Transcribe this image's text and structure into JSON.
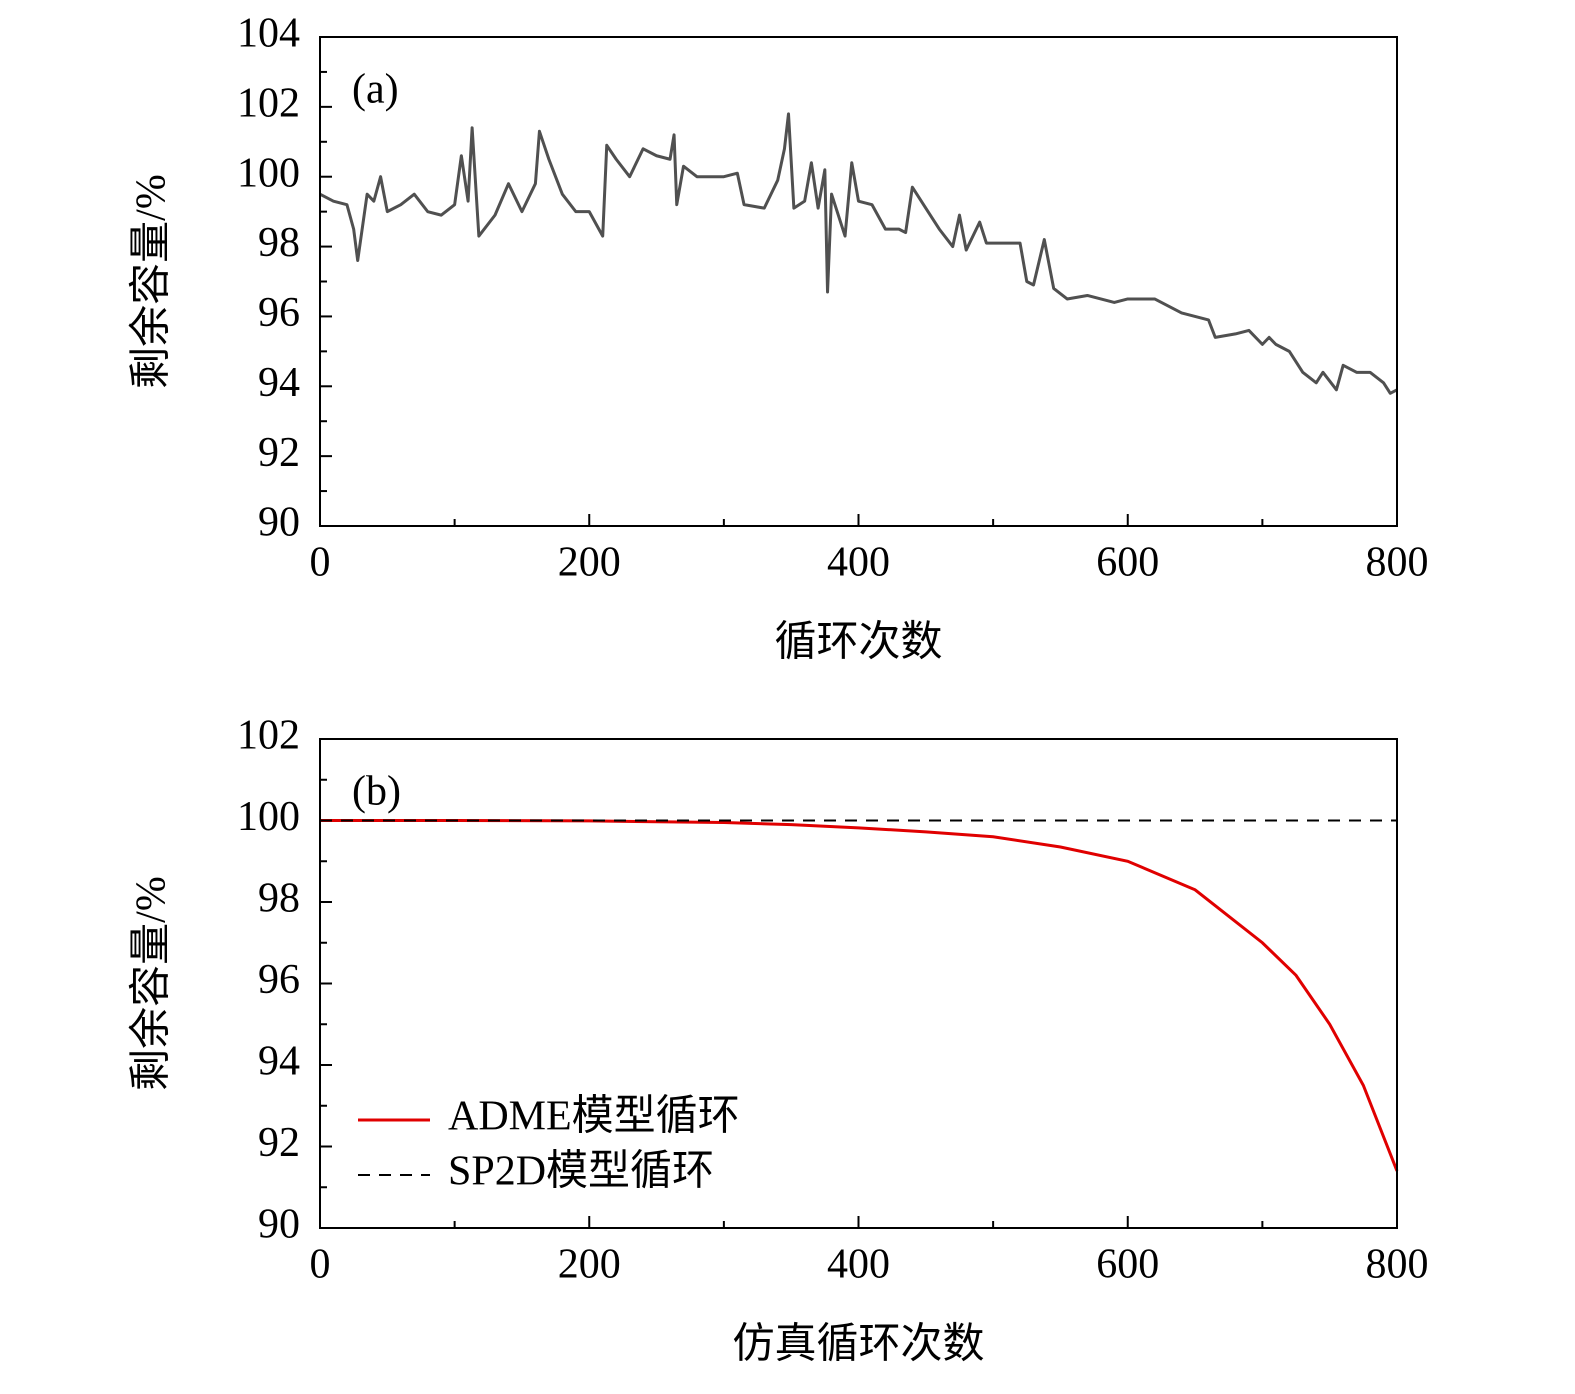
{
  "chart_data": [
    {
      "type": "line",
      "annotation": "(a)",
      "xlabel": "循环次数",
      "ylabel": "剩余容量/%",
      "x": [
        0,
        10,
        20,
        25,
        28,
        35,
        40,
        45,
        50,
        60,
        70,
        80,
        90,
        100,
        105,
        110,
        113,
        118,
        130,
        140,
        150,
        160,
        163,
        170,
        180,
        190,
        200,
        210,
        213,
        220,
        230,
        240,
        250,
        260,
        263,
        265,
        270,
        280,
        290,
        300,
        310,
        315,
        330,
        340,
        345,
        348,
        352,
        360,
        365,
        370,
        375,
        377,
        380,
        390,
        395,
        400,
        410,
        420,
        430,
        435,
        440,
        450,
        460,
        470,
        475,
        480,
        490,
        495,
        500,
        520,
        525,
        530,
        538,
        545,
        555,
        570,
        590,
        600,
        620,
        640,
        660,
        665,
        680,
        690,
        700,
        705,
        710,
        720,
        730,
        740,
        745,
        755,
        760,
        770,
        780,
        790,
        795,
        800
      ],
      "values": [
        99.5,
        99.3,
        99.2,
        98.5,
        97.6,
        99.5,
        99.3,
        100.0,
        99.0,
        99.2,
        99.5,
        99.0,
        98.9,
        99.2,
        100.6,
        99.3,
        101.4,
        98.3,
        98.9,
        99.8,
        99.0,
        99.8,
        101.3,
        100.5,
        99.5,
        99.0,
        99.0,
        98.3,
        100.9,
        100.5,
        100.0,
        100.8,
        100.6,
        100.5,
        101.2,
        99.2,
        100.3,
        100.0,
        100.0,
        100.0,
        100.1,
        99.2,
        99.1,
        99.9,
        100.8,
        101.8,
        99.1,
        99.3,
        100.4,
        99.1,
        100.2,
        96.7,
        99.5,
        98.3,
        100.4,
        99.3,
        99.2,
        98.5,
        98.5,
        98.4,
        99.7,
        99.1,
        98.5,
        98.0,
        98.9,
        97.9,
        98.7,
        98.1,
        98.1,
        98.1,
        97.0,
        96.9,
        98.2,
        96.8,
        96.5,
        96.6,
        96.4,
        96.5,
        96.5,
        96.1,
        95.9,
        95.4,
        95.5,
        95.6,
        95.2,
        95.4,
        95.2,
        95.0,
        94.4,
        94.1,
        94.4,
        93.9,
        94.6,
        94.4,
        94.4,
        94.1,
        93.8,
        93.9
      ],
      "color": "#505050",
      "xlim": [
        0,
        800
      ],
      "xticks": [
        0,
        200,
        400,
        600,
        800
      ],
      "xminor": [
        100,
        300,
        500,
        700
      ],
      "ylim": [
        90,
        104
      ],
      "yticks": [
        90,
        92,
        94,
        96,
        98,
        100,
        102,
        104
      ],
      "yminor": [
        91,
        93,
        95,
        97,
        99,
        101,
        103
      ]
    },
    {
      "type": "line",
      "annotation": "(b)",
      "xlabel": "仿真循环次数",
      "ylabel": "剩余容量/%",
      "x": [
        0,
        100,
        200,
        300,
        350,
        400,
        450,
        500,
        550,
        600,
        650,
        700,
        725,
        750,
        775,
        800
      ],
      "series": [
        {
          "name": "ADME模型循环",
          "color": "#e00000",
          "dash": false,
          "values": [
            100,
            100,
            99.99,
            99.95,
            99.9,
            99.82,
            99.72,
            99.6,
            99.35,
            99.0,
            98.3,
            97.0,
            96.2,
            95.0,
            93.5,
            91.4
          ]
        },
        {
          "name": "SP2D模型循环",
          "color": "#000000",
          "dash": true,
          "values": [
            100,
            100,
            100,
            100,
            100,
            100,
            100,
            100,
            100,
            100,
            100,
            100,
            100,
            100,
            100,
            100
          ]
        }
      ],
      "legend": "lower left",
      "xlim": [
        0,
        800
      ],
      "xticks": [
        0,
        200,
        400,
        600,
        800
      ],
      "xminor": [
        100,
        300,
        500,
        700
      ],
      "ylim": [
        90,
        102
      ],
      "yticks": [
        90,
        92,
        94,
        96,
        98,
        100,
        102
      ],
      "yminor": [
        91,
        93,
        95,
        97,
        99,
        101
      ]
    }
  ]
}
